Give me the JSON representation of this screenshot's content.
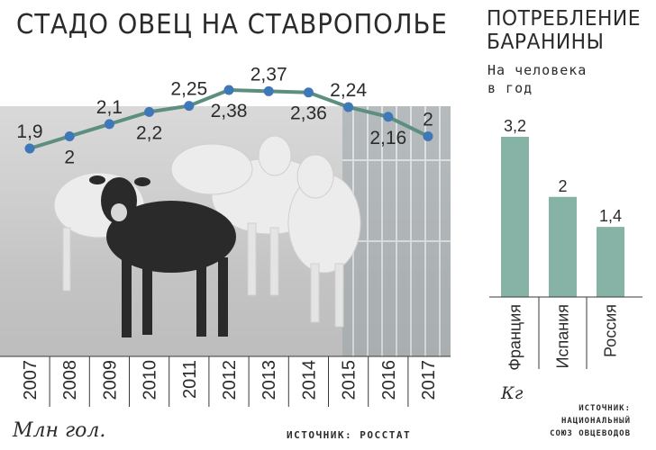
{
  "left_panel": {
    "title": "СТАДО ОВЕЦ НА СТАВРОПОЛЬЕ",
    "units": "Млн гол.",
    "source": "ИСТОЧНИК: РОССТАТ"
  },
  "right_panel": {
    "title_line1": "ПОТРЕБЛЕНИЕ",
    "title_line2": "БАРАНИНЫ",
    "subtitle_line1": "На человека",
    "subtitle_line2": "в год",
    "units": "Кг",
    "source_line1": "ИСТОЧНИК:",
    "source_line2": "НАЦИОНАЛЬНЫЙ",
    "source_line3": "СОЮЗ ОВЦЕВОДОВ"
  },
  "colors": {
    "line": "#5d8f80",
    "marker": "#3f78b8",
    "bar": "#86b3a6",
    "text": "#2b2b2b",
    "divider": "#3a3a3a"
  },
  "chart_data": [
    {
      "type": "line",
      "title": "СТАДО ОВЕЦ НА СТАВРОПОЛЬЕ",
      "ylabel": "Млн гол.",
      "categories": [
        "2007",
        "2008",
        "2009",
        "2010",
        "2011",
        "2012",
        "2013",
        "2014",
        "2015",
        "2016",
        "2017"
      ],
      "values": [
        1.9,
        2.0,
        2.1,
        2.2,
        2.25,
        2.38,
        2.37,
        2.36,
        2.24,
        2.16,
        2.0
      ],
      "data_labels": [
        "1,9",
        "2",
        "2,1",
        "2,2",
        "2,25",
        "2,38",
        "2,37",
        "2,36",
        "2,24",
        "2,16",
        "2"
      ],
      "label_positions": [
        "above",
        "below",
        "above",
        "below",
        "above",
        "below",
        "above",
        "below",
        "above",
        "below",
        "above"
      ],
      "ylim": [
        1.62,
        2.48
      ],
      "grid": false,
      "background": "photo of sheep"
    },
    {
      "type": "bar",
      "title": "ПОТРЕБЛЕНИЕ БАРАНИНЫ",
      "subtitle": "На человека в год",
      "ylabel": "Кг",
      "categories": [
        "Франция",
        "Испания",
        "Россия"
      ],
      "values": [
        3.2,
        2.0,
        1.4
      ],
      "data_labels": [
        "3,2",
        "2",
        "1,4"
      ],
      "ylim": [
        0,
        3.2
      ],
      "grid": false
    }
  ]
}
